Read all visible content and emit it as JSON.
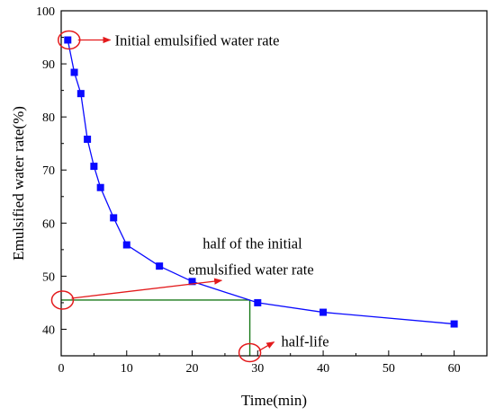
{
  "chart_data": {
    "type": "line",
    "title": "",
    "xlabel": "Time(min)",
    "ylabel": "Emulsified water rate(%)",
    "xlim": [
      0,
      65
    ],
    "ylim": [
      35,
      100
    ],
    "xticks": [
      0,
      10,
      20,
      30,
      40,
      50,
      60
    ],
    "yticks": [
      40,
      50,
      60,
      70,
      80,
      90,
      100
    ],
    "grid": false,
    "series": [
      {
        "marker": "square",
        "color": "#0a0aff",
        "x": [
          1,
          2,
          3,
          4,
          5,
          6,
          8,
          10,
          15,
          20,
          30,
          40,
          60
        ],
        "y": [
          94.5,
          88.4,
          84.4,
          75.8,
          70.7,
          66.7,
          61.0,
          55.9,
          51.9,
          49.0,
          45.0,
          43.2,
          41.0
        ]
      }
    ],
    "half_life_lines": {
      "color": "#1a7a1a",
      "y": 45.5,
      "x": 28.8
    },
    "annotations": [
      {
        "name": "initial-rate",
        "lines": [
          "Initial emulsified water rate"
        ],
        "circle_at": [
          1.2,
          94.5
        ],
        "arrow_to": [
          7.5,
          94.5
        ]
      },
      {
        "name": "half-initial-rate",
        "lines": [
          "half of the initial",
          "emulsified water rate"
        ],
        "circle_at": [
          0.2,
          45.5
        ],
        "arrow_to": [
          24.5,
          49.2
        ]
      },
      {
        "name": "half-life",
        "lines": [
          "half-life"
        ],
        "circle_at": [
          28.8,
          35.6
        ],
        "arrow_to": [
          32.5,
          37.6
        ]
      }
    ],
    "colors": {
      "annotation": "#e31a1c",
      "axis": "#000000"
    }
  }
}
